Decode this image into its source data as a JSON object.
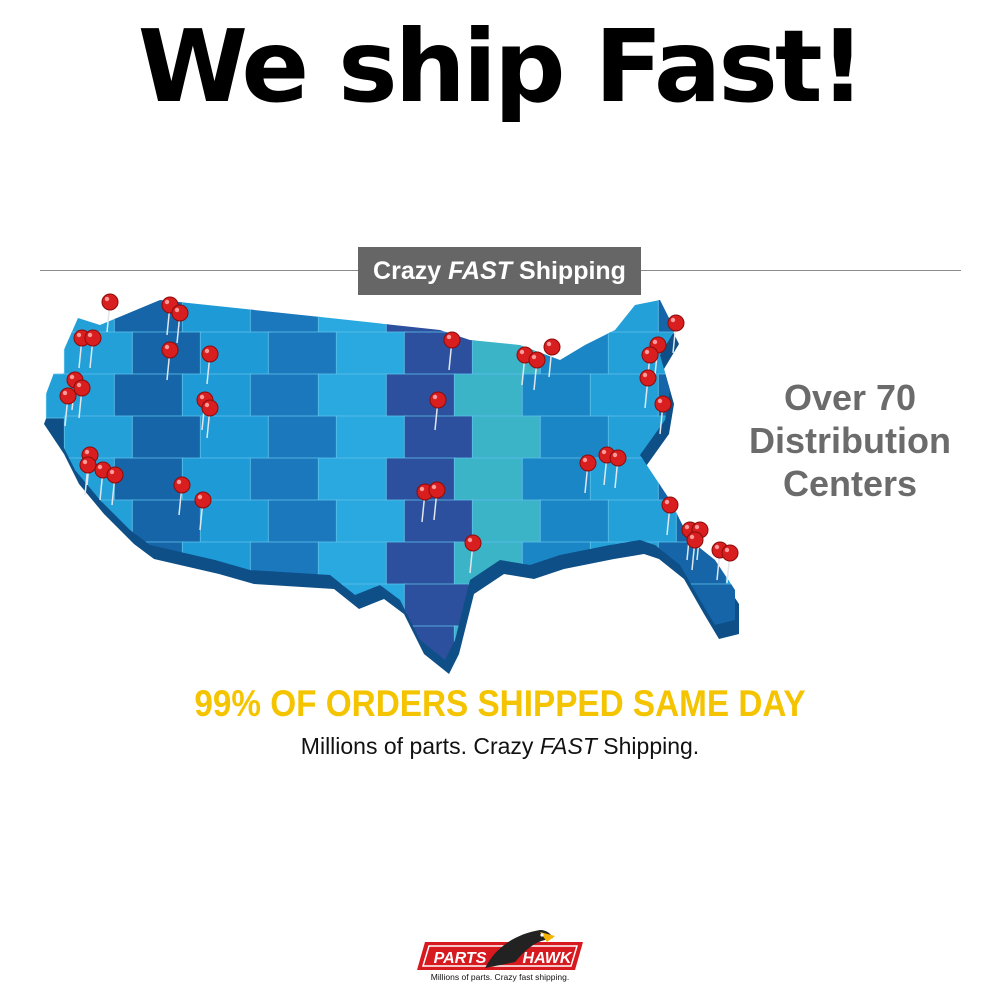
{
  "headline": "We ship Fast!",
  "banner": {
    "part1": "Crazy",
    "part2": "FAST",
    "part3": "Shipping"
  },
  "distribution": {
    "line1": "Over 70",
    "line2": "Distribution",
    "line3": "Centers"
  },
  "same_day": "99% OF ORDERS SHIPPED SAME DAY",
  "tagline": {
    "part1": "Millions of parts. Crazy",
    "part2": "FAST",
    "part3": "Shipping."
  },
  "logo": {
    "left": "PARTS",
    "right": "HAWK",
    "subtitle": "Millions of parts. Crazy fast shipping."
  },
  "colors": {
    "map_base": "#1e9ad6",
    "map_dark": "#1565a8",
    "pin": "#d81e1e",
    "accent_yellow": "#f5c400",
    "banner_bg": "#666666",
    "logo_red": "#d71920"
  },
  "icons": {
    "pin": "map-pin-icon",
    "map": "usa-map",
    "logo": "parts-hawk-logo"
  }
}
